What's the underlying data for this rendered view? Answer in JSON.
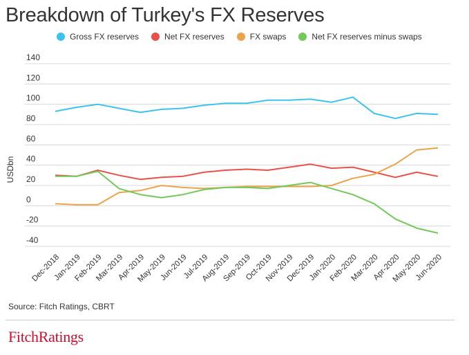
{
  "title": "Breakdown of Turkey's FX Reserves",
  "source": "Source: Fitch Ratings, CBRT",
  "logo_text": "FitchRatings",
  "chart_data": {
    "type": "line",
    "ylabel": "USDbn",
    "xlabel": "",
    "ylim": [
      -40,
      140
    ],
    "yticks": [
      140,
      120,
      100,
      80,
      60,
      40,
      20,
      0,
      -20,
      -40
    ],
    "grid": true,
    "legend_position": "top",
    "categories": [
      "Dec-2018",
      "Jan-2019",
      "Feb-2019",
      "Mar-2019",
      "Apr-2019",
      "May-2019",
      "Jun-2019",
      "Jul-2019",
      "Aug-2019",
      "Sep-2019",
      "Oct-2019",
      "Nov-2019",
      "Dec-2019",
      "Jan-2020",
      "Feb-2020",
      "Mar-2020",
      "Apr-2020",
      "May-2020",
      "Jun-2020"
    ],
    "series": [
      {
        "name": "Gross FX reserves",
        "color": "#3cc3ec",
        "values": [
          93,
          97,
          100,
          96,
          92,
          95,
          96,
          99,
          101,
          101,
          104,
          104,
          105,
          102,
          107,
          91,
          86,
          91,
          90
        ]
      },
      {
        "name": "Net FX reserves",
        "color": "#e8504a",
        "values": [
          30,
          29,
          35,
          30,
          26,
          28,
          29,
          33,
          35,
          36,
          35,
          38,
          41,
          37,
          38,
          33,
          28,
          33,
          29
        ]
      },
      {
        "name": "FX swaps",
        "color": "#eaa44a",
        "values": [
          2,
          1,
          1,
          13,
          15,
          20,
          18,
          17,
          18,
          19,
          19,
          19,
          19,
          20,
          27,
          31,
          41,
          55,
          57
        ]
      },
      {
        "name": "Net FX reserves minus swaps",
        "color": "#72c95a",
        "values": [
          29,
          29,
          34,
          17,
          11,
          8,
          11,
          16,
          18,
          18,
          17,
          20,
          23,
          17,
          11,
          2,
          -13,
          -22,
          -27
        ]
      }
    ]
  }
}
